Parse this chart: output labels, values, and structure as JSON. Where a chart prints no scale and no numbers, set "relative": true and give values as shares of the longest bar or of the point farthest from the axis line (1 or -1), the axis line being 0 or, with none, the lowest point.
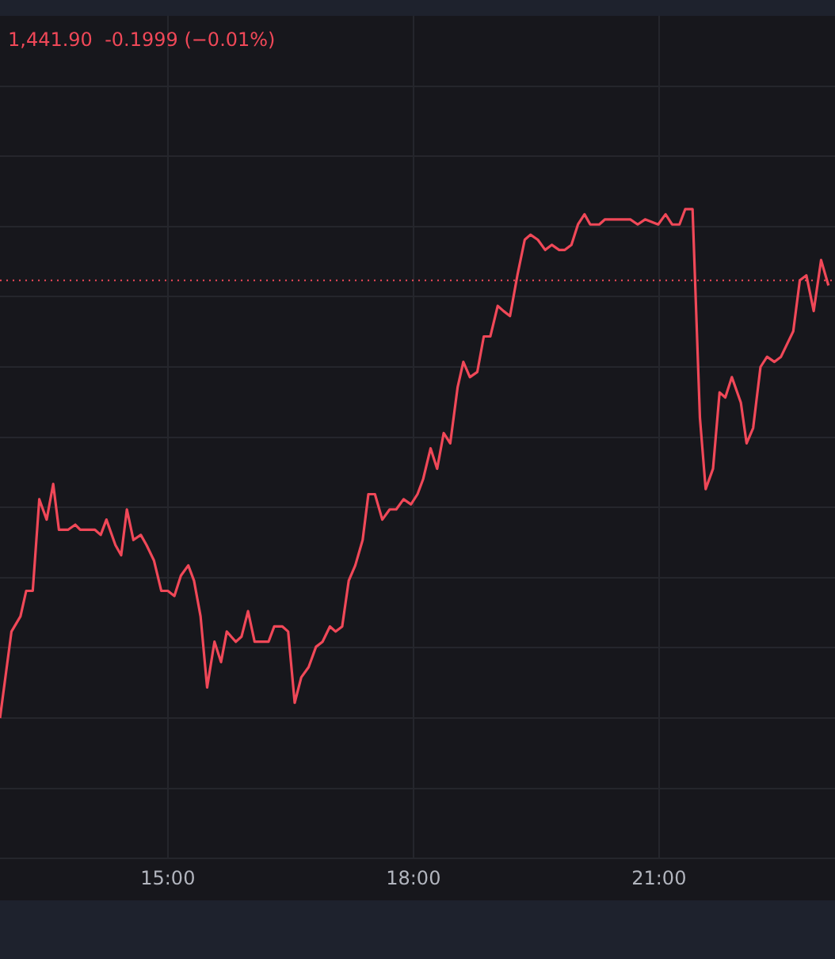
{
  "chart_data": {
    "type": "line",
    "relative": true,
    "annotations": [
      "1,441.90  -0.1999 (−0.01%)"
    ],
    "x": [
      12.95,
      13.09,
      13.2,
      13.27,
      13.35,
      13.43,
      13.52,
      13.6,
      13.67,
      13.78,
      13.87,
      13.93,
      14.11,
      14.18,
      14.25,
      14.36,
      14.43,
      14.5,
      14.58,
      14.67,
      14.74,
      14.83,
      14.92,
      15.0,
      15.08,
      15.16,
      15.25,
      15.32,
      15.4,
      15.48,
      15.57,
      15.65,
      15.72,
      15.83,
      15.9,
      15.98,
      16.06,
      16.23,
      16.3,
      16.4,
      16.47,
      16.55,
      16.63,
      16.72,
      16.81,
      16.89,
      16.98,
      17.05,
      17.13,
      17.21,
      17.29,
      17.38,
      17.45,
      17.53,
      17.62,
      17.71,
      17.79,
      17.88,
      17.97,
      18.05,
      18.12,
      18.21,
      18.29,
      18.37,
      18.45,
      18.54,
      18.61,
      18.69,
      18.78,
      18.86,
      18.94,
      19.03,
      19.1,
      19.18,
      19.27,
      19.36,
      19.43,
      19.52,
      19.61,
      19.69,
      19.78,
      19.85,
      19.93,
      20.01,
      20.09,
      20.16,
      20.27,
      20.34,
      20.5,
      20.65,
      20.74,
      20.83,
      20.99,
      21.08,
      21.16,
      21.25,
      21.32,
      21.41,
      21.5,
      21.57,
      21.66,
      21.74,
      21.81,
      21.89,
      22.0,
      22.07,
      22.15,
      22.24,
      22.32,
      22.41,
      22.49,
      22.64,
      22.72,
      22.8,
      22.89,
      22.98,
      23.07
    ],
    "values": [
      0,
      0.17,
      0.2,
      0.25,
      0.25,
      0.43,
      0.39,
      0.46,
      0.37,
      0.37,
      0.38,
      0.37,
      0.37,
      0.36,
      0.39,
      0.34,
      0.32,
      0.41,
      0.35,
      0.36,
      0.34,
      0.31,
      0.25,
      0.25,
      0.24,
      0.28,
      0.3,
      0.27,
      0.2,
      0.06,
      0.15,
      0.11,
      0.17,
      0.15,
      0.16,
      0.21,
      0.15,
      0.15,
      0.18,
      0.18,
      0.17,
      0.03,
      0.08,
      0.1,
      0.14,
      0.15,
      0.18,
      0.17,
      0.18,
      0.27,
      0.3,
      0.35,
      0.44,
      0.44,
      0.39,
      0.41,
      0.41,
      0.43,
      0.42,
      0.44,
      0.47,
      0.53,
      0.49,
      0.56,
      0.54,
      0.65,
      0.7,
      0.67,
      0.68,
      0.75,
      0.75,
      0.81,
      0.8,
      0.79,
      0.87,
      0.94,
      0.95,
      0.94,
      0.92,
      0.93,
      0.92,
      0.92,
      0.93,
      0.97,
      0.99,
      0.97,
      0.97,
      0.98,
      0.98,
      0.98,
      0.97,
      0.98,
      0.97,
      0.99,
      0.97,
      0.97,
      1.0,
      1,
      0.59,
      0.45,
      0.49,
      0.64,
      0.63,
      0.67,
      0.62,
      0.54,
      0.57,
      0.69,
      0.71,
      0.7,
      0.71,
      0.76,
      0.86,
      0.87,
      0.8,
      0.9,
      0.85
    ],
    "color": "#f04858",
    "xlim": [
      12.95,
      23.15
    ],
    "xticks": [
      {
        "value": 15,
        "label": "15:00"
      },
      {
        "value": 18,
        "label": "18:00"
      },
      {
        "value": 21,
        "label": "21:00"
      }
    ],
    "ref_lines": [
      {
        "axis": "y",
        "value": 0.86,
        "color": "#f04858",
        "line_style": "dotted"
      }
    ],
    "grid": true,
    "legend": false,
    "marker": "none"
  }
}
